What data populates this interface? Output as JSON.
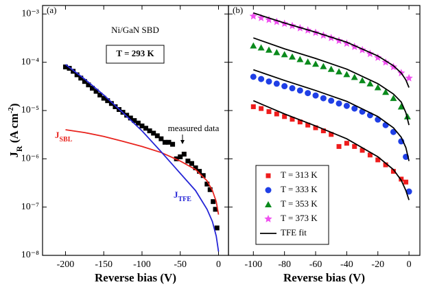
{
  "chart_data": [
    {
      "type": "scatter",
      "ylog": true,
      "xlim": [
        -230,
        13
      ],
      "ylim": [
        1e-08,
        0.0015
      ],
      "xticks": [
        -200,
        -150,
        -100,
        -50,
        0
      ],
      "yticks": [
        {
          "value": 1e-08,
          "label": "10⁻⁸"
        },
        {
          "value": 1e-07,
          "label": "10⁻⁷"
        },
        {
          "value": 1e-06,
          "label": "10⁻⁶"
        },
        {
          "value": 1e-05,
          "label": "10⁻⁵"
        },
        {
          "value": 0.0001,
          "label": "10⁻⁴"
        },
        {
          "value": 0.001,
          "label": "10⁻³"
        }
      ],
      "xlabel": "Reverse bias (V)",
      "ylabel": {
        "text": "J",
        "sub": "R",
        "text2": " (A cm",
        "sup": "-2",
        "text3": ")"
      },
      "annotations": [
        {
          "text": "(a)"
        },
        {
          "text": "Ni/GaN SBD"
        },
        {
          "text": "T = 293 K",
          "boxed": true
        },
        {
          "text": "measured data",
          "arrow": true
        },
        {
          "text": "J",
          "sub": "SBL",
          "color": "#e8231d"
        },
        {
          "text": "J",
          "sub": "TFE",
          "color": "#2525d6"
        }
      ],
      "series": [
        {
          "color": "#000000",
          "marker": "square",
          "x": [
            -200,
            -195,
            -190,
            -185,
            -180,
            -175,
            -170,
            -165,
            -160,
            -155,
            -150,
            -145,
            -140,
            -135,
            -130,
            -125,
            -120,
            -115,
            -110,
            -105,
            -100,
            -95,
            -90,
            -85,
            -80,
            -75,
            -70,
            -65,
            -60,
            -55,
            -50,
            -45,
            -40,
            -35,
            -30,
            -25,
            -20,
            -15,
            -11,
            -7,
            -4,
            -2
          ],
          "values": [
            8e-05,
            7.5e-05,
            6.5e-05,
            5.5e-05,
            4.7e-05,
            4e-05,
            3.4e-05,
            2.9e-05,
            2.5e-05,
            2.1e-05,
            1.8e-05,
            1.6e-05,
            1.4e-05,
            1.2e-05,
            1.05e-05,
            9.2e-06,
            8e-06,
            7e-06,
            6.2e-06,
            5.5e-06,
            4.8e-06,
            4.3e-06,
            3.8e-06,
            3.4e-06,
            3e-06,
            2.6e-06,
            2.2e-06,
            2.2e-06,
            2e-06,
            1e-06,
            1.1e-06,
            1.25e-06,
            9e-07,
            8e-07,
            6.5e-07,
            5.5e-07,
            4.5e-07,
            3e-07,
            2.3e-07,
            1.3e-07,
            9e-08,
            3.7e-08
          ]
        },
        {
          "color": "#e8231d",
          "style": "line",
          "x": [
            -200,
            -175,
            -150,
            -125,
            -100,
            -75,
            -50,
            -30,
            -15,
            -8,
            -3,
            0
          ],
          "values": [
            4e-06,
            3.5e-06,
            2.9e-06,
            2.3e-06,
            1.8e-06,
            1.35e-06,
            9e-07,
            6e-07,
            3.5e-07,
            2.2e-07,
            1.3e-07,
            7e-08
          ]
        },
        {
          "color": "#2525d6",
          "style": "line",
          "x": [
            -200,
            -175,
            -150,
            -125,
            -100,
            -75,
            -50,
            -30,
            -15,
            -8,
            -3,
            0
          ],
          "values": [
            9e-05,
            4.5e-05,
            2.1e-05,
            9e-06,
            3.8e-06,
            1.4e-06,
            5e-07,
            2.2e-07,
            9e-08,
            5e-08,
            2.5e-08,
            1.2e-08
          ]
        }
      ]
    },
    {
      "type": "scatter",
      "ylog": true,
      "xlim": [
        -116,
        7
      ],
      "ylim": [
        1e-08,
        0.0015
      ],
      "xticks": [
        -100,
        -80,
        -60,
        -40,
        -20,
        0
      ],
      "yticks": [
        1e-08,
        1e-07,
        1e-06,
        1e-05,
        0.0001,
        0.001
      ],
      "xlabel": "Reverse bias (V)",
      "legend": "lower left",
      "annotations": [
        {
          "text": "(b)"
        }
      ],
      "series": [
        {
          "name": "T = 313 K",
          "color": "#ee1c1c",
          "marker": "square",
          "x": [
            -100,
            -95,
            -90,
            -85,
            -80,
            -75,
            -70,
            -65,
            -60,
            -55,
            -50,
            -45,
            -40,
            -35,
            -30,
            -25,
            -20,
            -15,
            -10,
            -5,
            -2
          ],
          "values": [
            1.2e-05,
            1.1e-05,
            9.5e-06,
            8.5e-06,
            7.5e-06,
            6.6e-06,
            5.8e-06,
            5e-06,
            4.4e-06,
            3.8e-06,
            3.2e-06,
            1.8e-06,
            2.1e-06,
            1.8e-06,
            1.5e-06,
            1.2e-06,
            9.5e-07,
            7.5e-07,
            5.5e-07,
            3.8e-07,
            3.3e-07
          ]
        },
        {
          "name": "T = 333 K",
          "color": "#1f3fe6",
          "marker": "circle",
          "x": [
            -100,
            -95,
            -90,
            -85,
            -80,
            -75,
            -70,
            -65,
            -60,
            -55,
            -50,
            -45,
            -40,
            -35,
            -30,
            -25,
            -20,
            -15,
            -10,
            -5,
            -2,
            0
          ],
          "values": [
            5e-05,
            4.5e-05,
            4e-05,
            3.6e-05,
            3.2e-05,
            2.9e-05,
            2.6e-05,
            2.3e-05,
            2.05e-05,
            1.8e-05,
            1.6e-05,
            1.4e-05,
            1.25e-05,
            1.1e-05,
            9.5e-06,
            8e-06,
            6.5e-06,
            5e-06,
            3.6e-06,
            2.3e-06,
            1.1e-06,
            2.1e-07
          ]
        },
        {
          "name": "T = 353 K",
          "color": "#0a8a1c",
          "marker": "triangle",
          "x": [
            -100,
            -95,
            -90,
            -85,
            -80,
            -75,
            -70,
            -65,
            -60,
            -55,
            -50,
            -45,
            -40,
            -35,
            -30,
            -25,
            -20,
            -15,
            -10,
            -5,
            -1
          ],
          "values": [
            0.00022,
            0.0002,
            0.00018,
            0.00016,
            0.000145,
            0.00013,
            0.000115,
            0.000102,
            9.2e-05,
            8.2e-05,
            7.2e-05,
            6.4e-05,
            5.6e-05,
            4.9e-05,
            4.2e-05,
            3.6e-05,
            3e-05,
            2.4e-05,
            1.8e-05,
            1.2e-05,
            7.5e-06
          ]
        },
        {
          "name": "T = 373 K",
          "color": "#f050f0",
          "marker": "star",
          "x": [
            -100,
            -95,
            -90,
            -85,
            -80,
            -75,
            -70,
            -65,
            -60,
            -55,
            -50,
            -45,
            -40,
            -35,
            -30,
            -25,
            -20,
            -15,
            -10,
            -5,
            0
          ],
          "values": [
            0.0009,
            0.00083,
            0.00076,
            0.00069,
            0.00063,
            0.00057,
            0.00051,
            0.00046,
            0.00041,
            0.00036,
            0.00032,
            0.00028,
            0.000245,
            0.00021,
            0.00018,
            0.00015,
            0.000125,
            0.0001,
            8e-05,
            6e-05,
            4.7e-05
          ]
        },
        {
          "name": "TFE fit",
          "color": "#000000",
          "style": "line",
          "x": [
            -100,
            -80,
            -60,
            -40,
            -20,
            -10,
            -5,
            -2,
            0
          ],
          "curves": [
            [
              1.6e-05,
              8.5e-06,
              4.8e-06,
              2.6e-06,
              1.1e-06,
              6e-07,
              3.6e-07,
              2.2e-07,
              1.4e-07
            ],
            [
              7e-05,
              4.2e-05,
              2.6e-05,
              1.55e-05,
              7.5e-06,
              4.4e-06,
              2.8e-06,
              1.7e-06,
              9e-07
            ],
            [
              0.00032,
              0.00019,
              0.00012,
              7.2e-05,
              3.6e-05,
              2.2e-05,
              1.5e-05,
              9e-06,
              5e-06
            ],
            [
              0.00105,
              0.00065,
              0.00042,
              0.00026,
              0.000135,
              8.5e-05,
              6e-05,
              4.3e-05,
              3e-05
            ]
          ]
        }
      ]
    }
  ]
}
